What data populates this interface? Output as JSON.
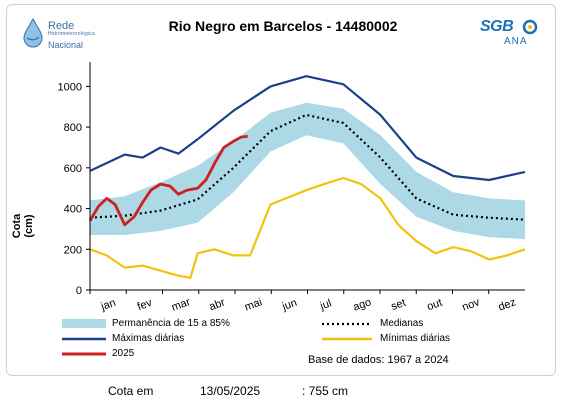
{
  "chart_data": {
    "type": "area",
    "title": "Rio Negro em Barcelos - 14480002",
    "ylabel": "Cota (cm)",
    "xlabel": "",
    "ylim": [
      0,
      1100
    ],
    "yticks": [
      0,
      200,
      400,
      600,
      800,
      1000
    ],
    "months": [
      "jan",
      "fev",
      "mar",
      "abr",
      "mai",
      "jun",
      "jul",
      "ago",
      "set",
      "out",
      "nov",
      "dez"
    ],
    "x_unit": "day of year",
    "series": [
      {
        "name": "Permanência de 15 a 85%",
        "kind": "band",
        "color": "#add8e6",
        "x": [
          1,
          30,
          60,
          91,
          121,
          152,
          182,
          213,
          244,
          274,
          305,
          335,
          365
        ],
        "lower": [
          270,
          270,
          290,
          330,
          480,
          680,
          760,
          720,
          520,
          360,
          290,
          260,
          250
        ],
        "upper": [
          440,
          460,
          530,
          610,
          730,
          870,
          920,
          890,
          760,
          580,
          480,
          450,
          440
        ]
      },
      {
        "name": "Medianas",
        "kind": "line",
        "color": "#000000",
        "dashed": true,
        "x": [
          1,
          30,
          60,
          91,
          121,
          152,
          182,
          213,
          244,
          274,
          305,
          335,
          365
        ],
        "values": [
          355,
          365,
          390,
          445,
          600,
          780,
          860,
          820,
          650,
          450,
          370,
          355,
          345
        ]
      },
      {
        "name": "Máximas diárias",
        "kind": "line",
        "color": "#1c3f8c",
        "x": [
          1,
          30,
          45,
          60,
          75,
          91,
          121,
          152,
          182,
          213,
          244,
          274,
          305,
          335,
          365
        ],
        "values": [
          585,
          665,
          650,
          700,
          670,
          740,
          880,
          1000,
          1050,
          1010,
          860,
          650,
          560,
          540,
          580
        ]
      },
      {
        "name": "Mínimas diárias",
        "kind": "line",
        "color": "#f4c20d",
        "x": [
          1,
          15,
          30,
          45,
          60,
          75,
          85,
          91,
          105,
          121,
          135,
          152,
          182,
          197,
          213,
          228,
          244,
          259,
          274,
          290,
          305,
          320,
          335,
          350,
          365
        ],
        "values": [
          200,
          170,
          110,
          120,
          95,
          70,
          60,
          180,
          200,
          170,
          170,
          420,
          490,
          520,
          550,
          520,
          450,
          320,
          240,
          180,
          210,
          190,
          150,
          170,
          200
        ]
      },
      {
        "name": "2025",
        "kind": "line",
        "color": "#d01f1f",
        "x": [
          1,
          8,
          15,
          22,
          30,
          38,
          45,
          52,
          60,
          68,
          75,
          82,
          91,
          98,
          106,
          113,
          121,
          127,
          133
        ],
        "values": [
          340,
          410,
          450,
          420,
          320,
          360,
          430,
          490,
          520,
          510,
          470,
          490,
          500,
          540,
          630,
          700,
          730,
          750,
          755
        ]
      }
    ],
    "grid": false,
    "legend_position": "bottom"
  },
  "header": {
    "logo_left": {
      "line1": "Rede",
      "line2": "Hidrometeorológica",
      "line3": "Nacional"
    },
    "logo_right": {
      "line1": "SGB",
      "line2": "ANA"
    }
  },
  "legend": {
    "band": "Permanência de 15 a 85%",
    "median": "Medianas",
    "max": "Máximas diárias",
    "min": "Mínimas diárias",
    "year": "2025",
    "base": "Base de dados: 1967 a 2024"
  },
  "footer": {
    "label": "Cota em",
    "date": "13/05/2025",
    "value": ": 755 cm"
  }
}
